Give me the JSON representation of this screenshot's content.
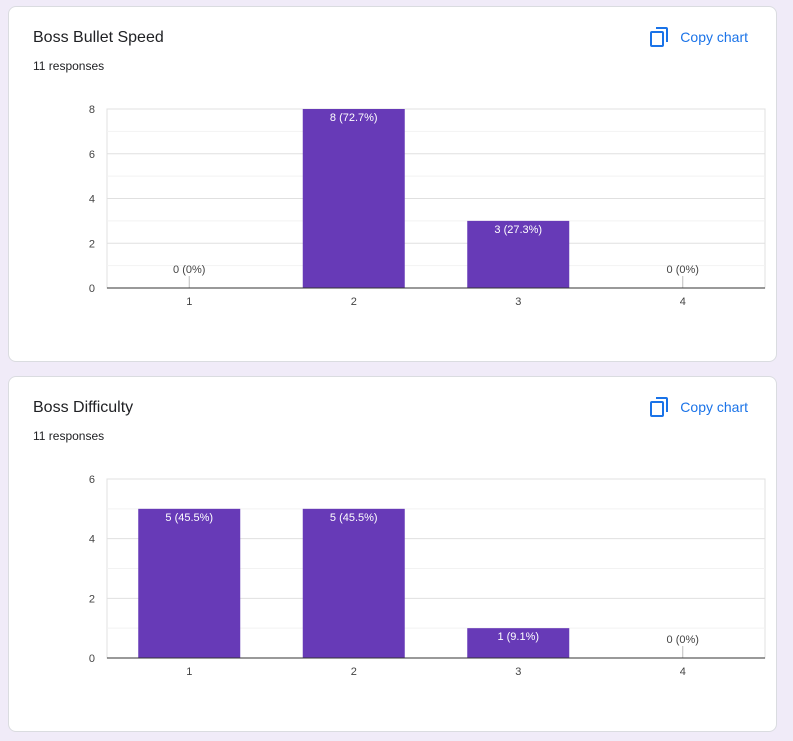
{
  "copy_label": "Copy chart",
  "colors": {
    "bar": "#673ab7",
    "accent": "#1a73e8",
    "background": "#f0ebf8"
  },
  "icons": {
    "copy": "copy-content-icon"
  },
  "charts": [
    {
      "title": "Boss Bullet Speed",
      "responses": "11 responses",
      "chart_data": {
        "type": "bar",
        "categories": [
          "1",
          "2",
          "3",
          "4"
        ],
        "values": [
          0,
          8,
          3,
          0
        ],
        "labels": [
          "0 (0%)",
          "8 (72.7%)",
          "3 (27.3%)",
          "0 (0%)"
        ],
        "ylim": [
          0,
          8
        ],
        "yticks": [
          0,
          2,
          4,
          6,
          8
        ],
        "grid": true
      }
    },
    {
      "title": "Boss Difficulty",
      "responses": "11 responses",
      "chart_data": {
        "type": "bar",
        "categories": [
          "1",
          "2",
          "3",
          "4"
        ],
        "values": [
          5,
          5,
          1,
          0
        ],
        "labels": [
          "5 (45.5%)",
          "5 (45.5%)",
          "1 (9.1%)",
          "0 (0%)"
        ],
        "ylim": [
          0,
          6
        ],
        "yticks": [
          0,
          2,
          4,
          6
        ],
        "grid": true
      }
    }
  ]
}
